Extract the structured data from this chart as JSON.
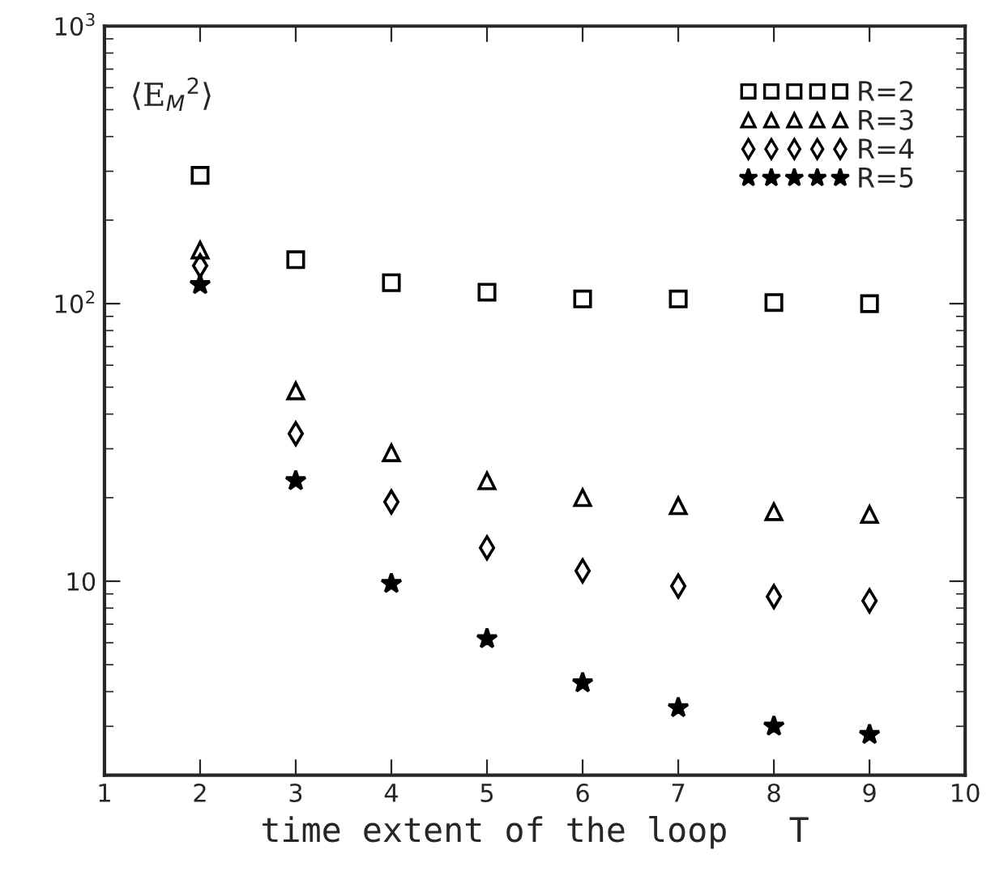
{
  "chart_data": {
    "type": "scatter",
    "xlabel": "time extent of the loop   T",
    "ylabel": "⟨E$_{M}$$^{2}$⟩",
    "log": "y",
    "grid": false,
    "legend": "top right",
    "x": [
      2,
      3,
      4,
      5,
      6,
      7,
      8,
      9
    ],
    "xlim": [
      1,
      10
    ],
    "xticks": [
      1,
      2,
      3,
      4,
      5,
      6,
      7,
      8,
      9,
      10
    ],
    "ylim": [
      2,
      1000
    ],
    "yticks": [
      10,
      {
        "value": 100,
        "label": "10$^{2}$"
      },
      {
        "value": 1000,
        "label": "10$^{3}$"
      }
    ],
    "series": [
      {
        "name": "R=2",
        "color": "#000000",
        "marker": "square",
        "values": [
          290,
          144,
          119,
          110,
          104,
          104,
          101,
          100
        ]
      },
      {
        "name": "R=3",
        "color": "#000000",
        "marker": "triangle",
        "values": [
          156,
          48.5,
          29,
          23,
          20,
          18.7,
          17.8,
          17.4
        ]
      },
      {
        "name": "R=4",
        "color": "#000000",
        "marker": "diamond",
        "values": [
          137,
          34,
          19.3,
          13.2,
          10.9,
          9.6,
          8.8,
          8.5
        ]
      },
      {
        "name": "R=5",
        "color": "#000000",
        "marker": "star",
        "values": [
          117,
          23,
          9.8,
          6.2,
          4.3,
          3.5,
          3.0,
          2.8
        ]
      }
    ]
  }
}
